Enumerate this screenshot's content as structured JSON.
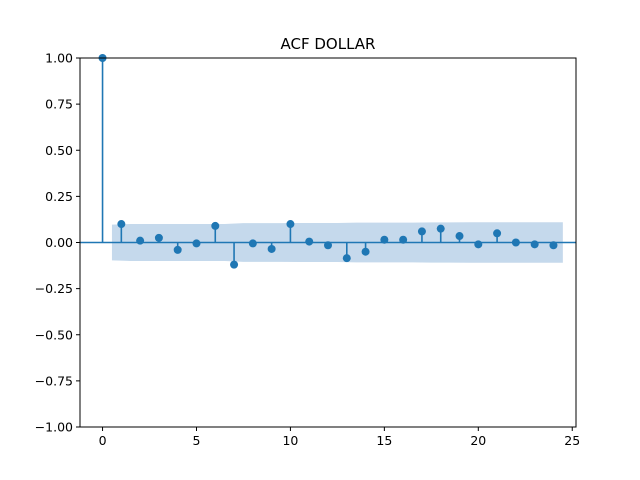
{
  "chart_data": {
    "type": "stem",
    "title": "ACF DOLLAR",
    "xlabel": "",
    "ylabel": "",
    "xlim": [
      -1.2,
      25.2
    ],
    "ylim": [
      -1.0,
      1.0
    ],
    "x_ticks": [
      0,
      5,
      10,
      15,
      20,
      25
    ],
    "x_tick_labels": [
      "0",
      "5",
      "10",
      "15",
      "20",
      "25"
    ],
    "y_ticks": [
      -1.0,
      -0.75,
      -0.5,
      -0.25,
      0.0,
      0.25,
      0.5,
      0.75,
      1.0
    ],
    "y_tick_labels": [
      "−1.00",
      "−0.75",
      "−0.50",
      "−0.25",
      "0.00",
      "0.25",
      "0.50",
      "0.75",
      "1.00"
    ],
    "grid": false,
    "legend": "none",
    "colors": {
      "stem": "#1f77b4",
      "confidence_band": "#c5d9ec"
    },
    "series": [
      {
        "lags": [
          0,
          1,
          2,
          3,
          4,
          5,
          6,
          7,
          8,
          9,
          10,
          11,
          12,
          13,
          14,
          15,
          16,
          17,
          18,
          19,
          20,
          21,
          22,
          23,
          24
        ],
        "values": [
          1.0,
          0.1,
          0.01,
          0.025,
          -0.04,
          -0.005,
          0.09,
          -0.12,
          -0.005,
          -0.035,
          0.1,
          0.005,
          -0.015,
          -0.085,
          -0.05,
          0.015,
          0.015,
          0.06,
          0.075,
          0.035,
          -0.01,
          0.05,
          0.0,
          -0.01,
          -0.015
        ]
      }
    ],
    "confidence_band": {
      "x_start": 0.5,
      "x_end": 24.5,
      "values": [
        0.097,
        0.1,
        0.1,
        0.1,
        0.1,
        0.1,
        0.1,
        0.105,
        0.105,
        0.105,
        0.106,
        0.106,
        0.106,
        0.108,
        0.108,
        0.108,
        0.108,
        0.109,
        0.109,
        0.11,
        0.11,
        0.11,
        0.11,
        0.11,
        0.11
      ]
    }
  }
}
